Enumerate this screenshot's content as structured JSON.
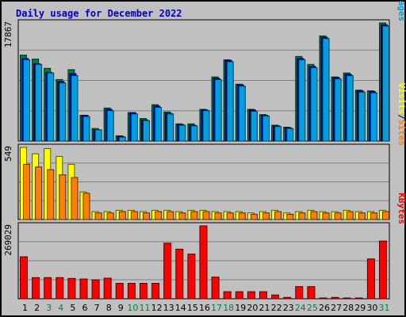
{
  "title": "Daily usage for December 2022",
  "colors": {
    "pages": "#00a0e0",
    "files": "#0000c8",
    "hits": "#008040",
    "sites": "#ff8000",
    "visits": "#ffff00",
    "kbytes": "#ff0000",
    "weekend": "#008040",
    "weekday": "#000000",
    "title": "#0000c0"
  },
  "chart_data": [
    {
      "type": "bar",
      "panel": "top",
      "ymax_label": "17867",
      "ylim": [
        0,
        17867
      ],
      "legend": [
        "Pages",
        "Files",
        "Hits"
      ],
      "legend_separator": "/",
      "categories": [
        "1",
        "2",
        "3",
        "4",
        "5",
        "6",
        "7",
        "8",
        "9",
        "10",
        "11",
        "12",
        "13",
        "14",
        "15",
        "16",
        "17",
        "18",
        "19",
        "20",
        "21",
        "22",
        "23",
        "24",
        "25",
        "26",
        "27",
        "28",
        "29",
        "30",
        "31"
      ],
      "series": [
        {
          "name": "Hits",
          "values": [
            13000,
            12400,
            11000,
            9300,
            10800,
            3900,
            1900,
            5000,
            800,
            4300,
            3400,
            5500,
            4400,
            2600,
            2600,
            4800,
            9700,
            12300,
            8600,
            4800,
            4000,
            2400,
            2100,
            12800,
            11600,
            15900,
            9700,
            10300,
            7700,
            7600,
            17867
          ]
        },
        {
          "name": "Files",
          "values": [
            12500,
            11700,
            10400,
            9000,
            10200,
            3900,
            1700,
            4800,
            700,
            4300,
            3200,
            5300,
            4200,
            2500,
            2400,
            4700,
            9500,
            12200,
            8500,
            4700,
            3900,
            2300,
            2000,
            12500,
            11300,
            15700,
            9600,
            10100,
            7600,
            7500,
            17600
          ]
        },
        {
          "name": "Pages",
          "values": [
            12300,
            11600,
            10300,
            8800,
            9900,
            3700,
            1700,
            4600,
            600,
            4100,
            3100,
            5100,
            4100,
            2400,
            2300,
            4600,
            9300,
            12000,
            8300,
            4500,
            3800,
            2200,
            1900,
            12300,
            11100,
            15500,
            9400,
            9900,
            7400,
            7300,
            17400
          ]
        }
      ]
    },
    {
      "type": "bar",
      "panel": "middle",
      "ymax_label": "549",
      "ylim": [
        0,
        549
      ],
      "legend": [
        "Sites",
        "Visits"
      ],
      "legend_separator": "/",
      "categories": [
        "1",
        "2",
        "3",
        "4",
        "5",
        "6",
        "7",
        "8",
        "9",
        "10",
        "11",
        "12",
        "13",
        "14",
        "15",
        "16",
        "17",
        "18",
        "19",
        "20",
        "21",
        "22",
        "23",
        "24",
        "25",
        "26",
        "27",
        "28",
        "29",
        "30",
        "31"
      ],
      "series": [
        {
          "name": "Visits",
          "values": [
            549,
            500,
            540,
            480,
            420,
            210,
            60,
            60,
            70,
            70,
            60,
            70,
            70,
            60,
            70,
            70,
            60,
            60,
            60,
            50,
            60,
            70,
            50,
            60,
            70,
            60,
            60,
            70,
            60,
            60,
            70
          ]
        },
        {
          "name": "Sites",
          "values": [
            420,
            400,
            380,
            340,
            320,
            200,
            50,
            50,
            60,
            60,
            50,
            60,
            60,
            50,
            60,
            60,
            50,
            50,
            50,
            40,
            50,
            60,
            40,
            50,
            60,
            50,
            50,
            60,
            50,
            50,
            60
          ]
        }
      ]
    },
    {
      "type": "bar",
      "panel": "bottom",
      "ymax_label": "269029",
      "ylim": [
        0,
        269029
      ],
      "legend": [
        "KBytes"
      ],
      "categories": [
        "1",
        "2",
        "3",
        "4",
        "5",
        "6",
        "7",
        "8",
        "9",
        "10",
        "11",
        "12",
        "13",
        "14",
        "15",
        "16",
        "17",
        "18",
        "19",
        "20",
        "21",
        "22",
        "23",
        "24",
        "25",
        "26",
        "27",
        "28",
        "29",
        "30",
        "31"
      ],
      "weekend_days": [
        "3",
        "4",
        "10",
        "11",
        "17",
        "18",
        "24",
        "25",
        "31"
      ],
      "series": [
        {
          "name": "KBytes",
          "values": [
            155000,
            78000,
            78000,
            78000,
            75000,
            73000,
            70000,
            76000,
            57000,
            57000,
            57000,
            57000,
            205000,
            183000,
            165000,
            269029,
            80000,
            26000,
            26000,
            26000,
            26000,
            14000,
            5000,
            45000,
            45000,
            2000,
            5000,
            3000,
            2000,
            147000,
            213000
          ]
        }
      ]
    }
  ]
}
